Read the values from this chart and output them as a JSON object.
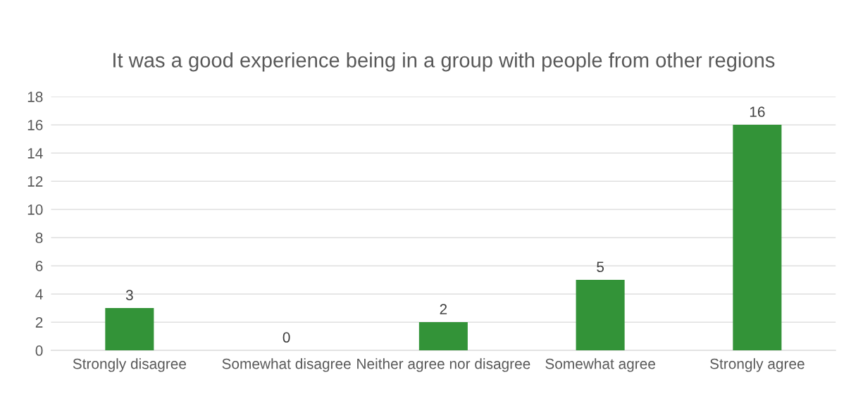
{
  "chart_data": {
    "type": "bar",
    "title": "It was a good experience being in a group with people from other regions",
    "categories": [
      "Strongly disagree",
      "Somewhat disagree",
      "Neither agree nor disagree",
      "Somewhat agree",
      "Strongly agree"
    ],
    "values": [
      3,
      0,
      2,
      5,
      16
    ],
    "color": "#339338",
    "ylim": [
      0,
      18
    ],
    "yticks": [
      0,
      2,
      4,
      6,
      8,
      10,
      12,
      14,
      16,
      18
    ],
    "grid": "y",
    "data_labels": true,
    "legend": false
  }
}
